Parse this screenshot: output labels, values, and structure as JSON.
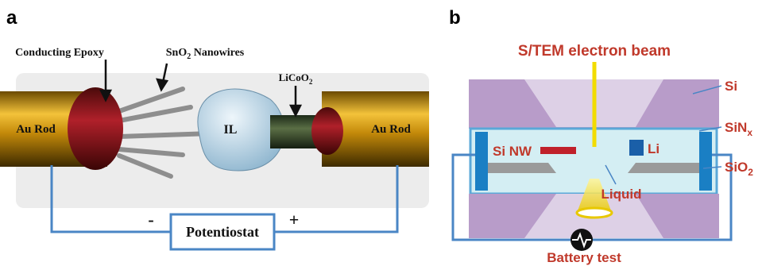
{
  "panel_a": {
    "label": "a",
    "conducting_epoxy": "Conducting Epoxy",
    "nanowires": [
      "SnO",
      "2",
      " Nanowires"
    ],
    "licoo2": [
      "LiCoO",
      "2"
    ],
    "au_rod_left": "Au Rod",
    "au_rod_right": "Au Rod",
    "il": "IL",
    "minus": "-",
    "plus": "+",
    "potentiostat": "Potentiostat"
  },
  "panel_b": {
    "label": "b",
    "beam": "S/TEM electron beam",
    "si": "Si",
    "sinx": [
      "SiN",
      "x"
    ],
    "sio2": [
      "SiO",
      "2"
    ],
    "si_nw": "Si NW",
    "li": "Li",
    "liquid": "Liquid",
    "battery_test": "Battery test"
  }
}
